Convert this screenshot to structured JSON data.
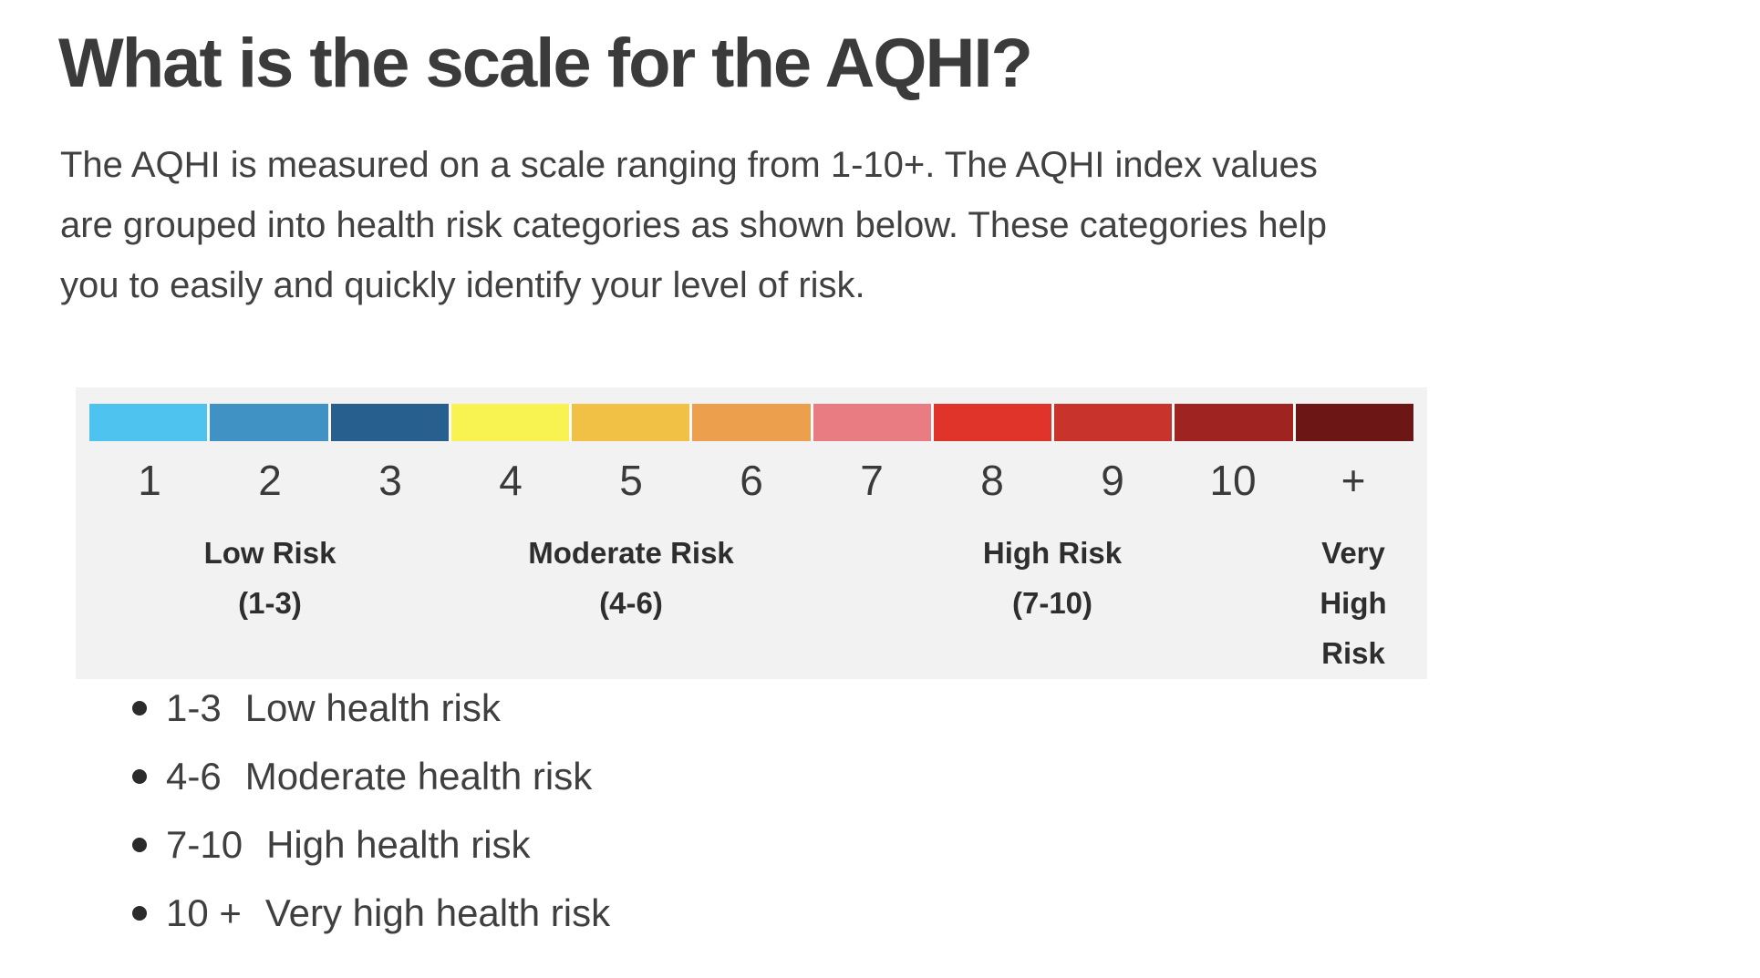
{
  "page": {
    "heading": "What is the scale for the AQHI?",
    "paragraph_lines": [
      "The AQHI is measured on a scale ranging from 1-10+. The AQHI index values",
      "are grouped into health risk categories as shown below. These categories help",
      "you to easily and quickly identify your level of risk."
    ]
  },
  "scale": {
    "panel_bg": "#F3F2F2",
    "gap_color": "#FBFAFA",
    "segments": [
      {
        "value": "1",
        "color": "#4FC3F0"
      },
      {
        "value": "2",
        "color": "#4092C5"
      },
      {
        "value": "3",
        "color": "#27608F"
      },
      {
        "value": "4",
        "color": "#F9F351"
      },
      {
        "value": "5",
        "color": "#F1C146"
      },
      {
        "value": "6",
        "color": "#ECA04E"
      },
      {
        "value": "7",
        "color": "#E97C82"
      },
      {
        "value": "8",
        "color": "#E0342B"
      },
      {
        "value": "9",
        "color": "#C8342C"
      },
      {
        "value": "10",
        "color": "#9F2421"
      },
      {
        "value": "+",
        "color": "#6C1616"
      }
    ],
    "categories": [
      {
        "label": "Low Risk",
        "range": "(1-3)",
        "span_start": 1,
        "span_end": 3
      },
      {
        "label": "Moderate Risk",
        "range": "(4-6)",
        "span_start": 4,
        "span_end": 6
      },
      {
        "label": "High Risk",
        "range": "(7-10)",
        "span_start": 7,
        "span_end": 10
      },
      {
        "label": "Very High Risk",
        "range": "",
        "span_start": 11,
        "span_end": 11
      }
    ]
  },
  "risk_list": {
    "items": [
      {
        "range": "1-3",
        "label": "Low health risk"
      },
      {
        "range": "4-6",
        "label": "Moderate health risk"
      },
      {
        "range": "7-10",
        "label": "High health risk"
      },
      {
        "range": "10 +",
        "label": "Very high health risk"
      }
    ]
  }
}
